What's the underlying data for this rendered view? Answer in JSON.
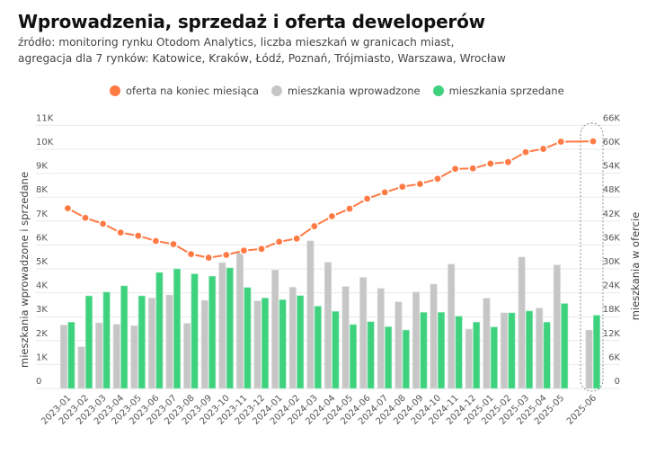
{
  "header": {
    "title": "Wprowadzenia, sprzedaż i oferta deweloperów",
    "subtitle_line1": "źródło: monitoring rynku Otodom Analytics, liczba mieszkań w granicach miast,",
    "subtitle_line2": "agregacja dla 7 rynków: Katowice, Kraków, Łódź, Poznań, Trójmiasto, Warszawa, Wrocław"
  },
  "colors": {
    "offer": "#FF7A45",
    "introduced": "#C6C6C6",
    "sold": "#3FD27E",
    "grid": "#E9E9E9",
    "highlight_box": "#8A8F99"
  },
  "chart_data": {
    "type": "bar",
    "title": "Wprowadzenia, sprzedaż i oferta deweloperów",
    "legend": [
      {
        "key": "offer",
        "label": "oferta na koniec miesiąca",
        "mark": "line"
      },
      {
        "key": "introduced",
        "label": "mieszkania wprowadzone",
        "mark": "bar"
      },
      {
        "key": "sold",
        "label": "mieszkania sprzedane",
        "mark": "bar"
      }
    ],
    "legend_position": "top-center",
    "ylabel_left": "mieszkania wprowadzone i sprzedane",
    "ylabel_right": "mieszkania w ofercie",
    "ylim_left": [
      0,
      11000
    ],
    "ylim_right": [
      0,
      66000
    ],
    "yticks_left": [
      "0",
      "1K",
      "2K",
      "3K",
      "4K",
      "5K",
      "6K",
      "7K",
      "8K",
      "9K",
      "10K",
      "11K"
    ],
    "yticks_right": [
      "0",
      "6K",
      "12K",
      "18K",
      "24K",
      "30K",
      "36K",
      "42K",
      "48K",
      "54K",
      "60K",
      "66K"
    ],
    "grid": true,
    "highlighted_category": "2025-06",
    "categories": [
      "2023-01",
      "2023-02",
      "2023-03",
      "2023-04",
      "2023-05",
      "2023-06",
      "2023-07",
      "2023-08",
      "2023-09",
      "2023-10",
      "2023-11",
      "2023-12",
      "2024-01",
      "2024-02",
      "2024-03",
      "2024-04",
      "2024-05",
      "2024-06",
      "2024-07",
      "2024-08",
      "2024-09",
      "2024-10",
      "2024-11",
      "2024-12",
      "2025-01",
      "2025-02",
      "2025-03",
      "2025-04",
      "2025-05",
      "2025-06"
    ],
    "series": [
      {
        "key": "introduced",
        "name": "mieszkania wprowadzone",
        "type": "bar",
        "axis": "left",
        "values": [
          2650,
          1740,
          2740,
          2680,
          2620,
          3780,
          3910,
          2720,
          3680,
          5260,
          5690,
          3660,
          4950,
          4230,
          6170,
          5270,
          4260,
          4640,
          4180,
          3620,
          4030,
          4360,
          5200,
          2480,
          3770,
          3160,
          5490,
          3360,
          5160,
          2440
        ]
      },
      {
        "key": "sold",
        "name": "mieszkania sprzedane",
        "type": "bar",
        "axis": "left",
        "values": [
          2770,
          3870,
          4030,
          4290,
          3870,
          4850,
          5000,
          4790,
          4690,
          5040,
          4220,
          3780,
          3710,
          3880,
          3440,
          3220,
          2670,
          2790,
          2580,
          2440,
          3180,
          3180,
          3020,
          2770,
          2570,
          3160,
          3240,
          2770,
          3550,
          3060
        ]
      },
      {
        "key": "offer",
        "name": "oferta na koniec miesiąca",
        "type": "line",
        "axis": "right",
        "values": [
          45200,
          42800,
          41300,
          39100,
          38300,
          37000,
          36200,
          33700,
          32800,
          33500,
          34600,
          35000,
          36800,
          37600,
          40700,
          43200,
          45100,
          47600,
          49200,
          50600,
          51300,
          52600,
          55100,
          55200,
          56400,
          56800,
          59300,
          60100,
          61900,
          62000
        ]
      }
    ]
  }
}
